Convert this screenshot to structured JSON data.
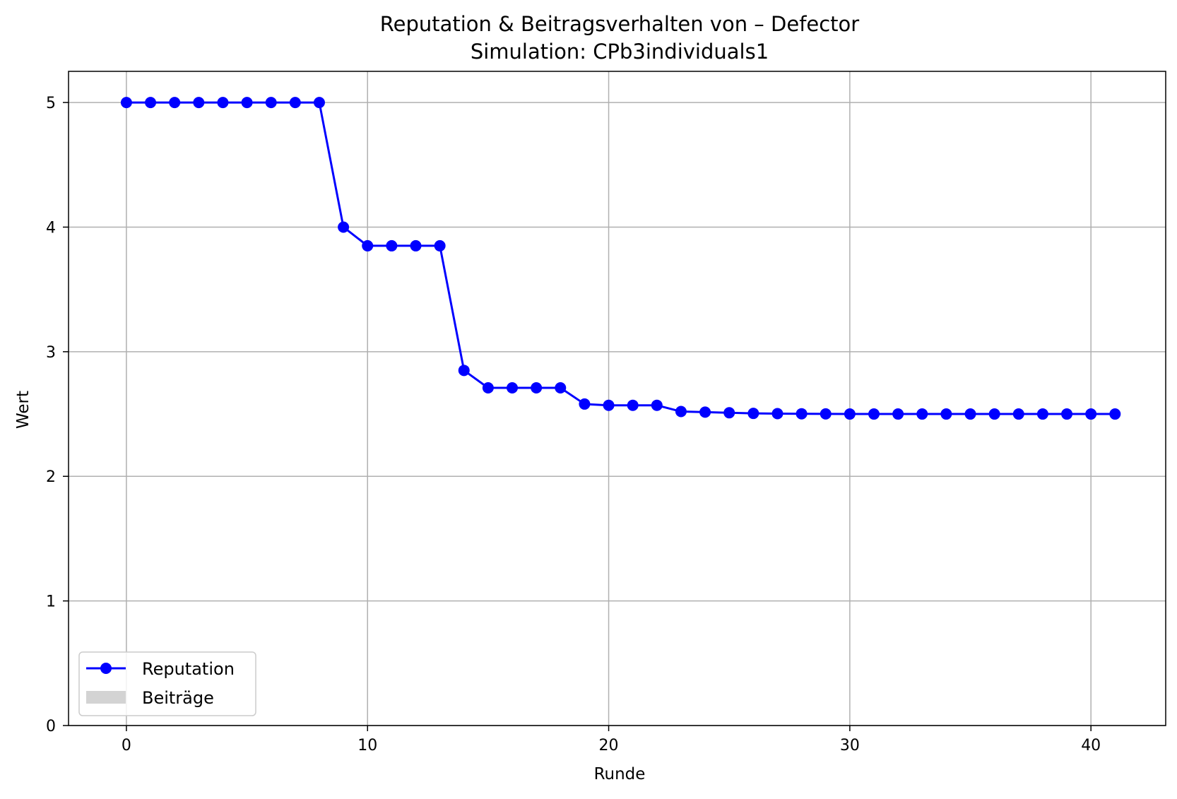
{
  "chart_data": {
    "type": "line",
    "title": "Reputation & Beitragsverhalten von – Defector",
    "subtitle": "Simulation: CPb3individuals1",
    "xlabel": "Runde",
    "ylabel": "Wert",
    "xlim": [
      -2.4,
      43.1
    ],
    "ylim": [
      0,
      5.25
    ],
    "xticks": [
      0,
      10,
      20,
      30,
      40
    ],
    "yticks": [
      0,
      1,
      2,
      3,
      4,
      5
    ],
    "grid": true,
    "legend_position": "lower-left",
    "series": [
      {
        "name": "Reputation",
        "color": "#0000ff",
        "marker": "circle",
        "x": [
          0,
          1,
          2,
          3,
          4,
          5,
          6,
          7,
          8,
          9,
          10,
          11,
          12,
          13,
          14,
          15,
          16,
          17,
          18,
          19,
          20,
          21,
          22,
          23,
          24,
          25,
          26,
          27,
          28,
          29,
          30,
          31,
          32,
          33,
          34,
          35,
          36,
          37,
          38,
          39,
          40,
          41
        ],
        "values": [
          5,
          5,
          5,
          5,
          5,
          5,
          5,
          5,
          5,
          4,
          3.85,
          3.85,
          3.85,
          3.85,
          2.85,
          2.71,
          2.71,
          2.71,
          2.71,
          2.58,
          2.57,
          2.57,
          2.57,
          2.52,
          2.515,
          2.51,
          2.505,
          2.503,
          2.502,
          2.501,
          2.5,
          2.5,
          2.5,
          2.5,
          2.5,
          2.5,
          2.5,
          2.5,
          2.5,
          2.5,
          2.5,
          2.5
        ]
      },
      {
        "name": "Beiträge",
        "color": "#d3d3d3",
        "values": []
      }
    ]
  }
}
